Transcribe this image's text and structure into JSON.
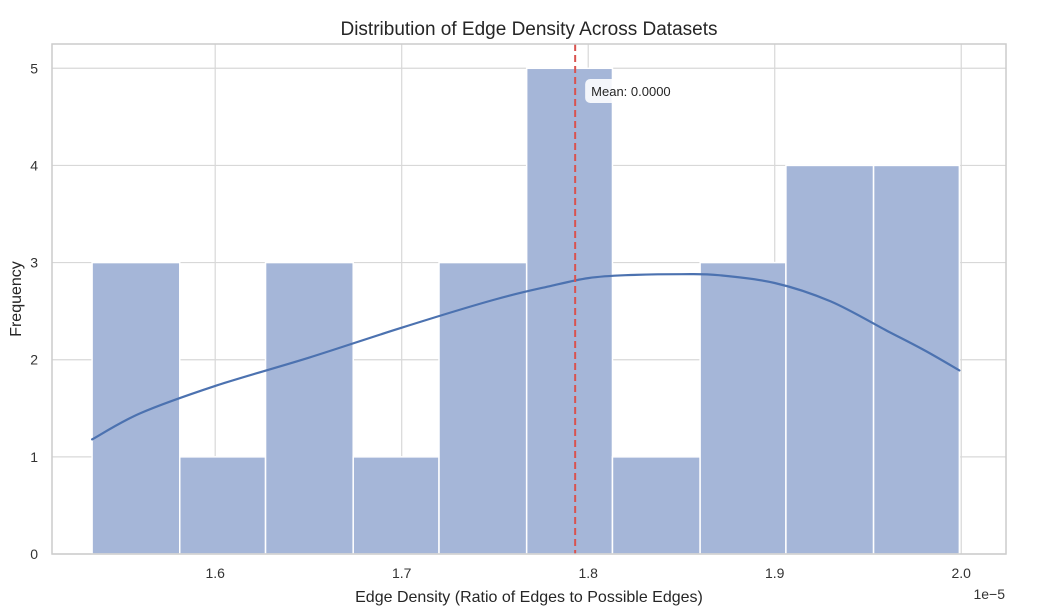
{
  "chart_data": {
    "type": "bar",
    "title": "Distribution of Edge Density Across Datasets",
    "xlabel": "Edge Density (Ratio of Edges to Possible Edges)",
    "ylabel": "Frequency",
    "x_offset_label": "1e−5",
    "xlim": [
      1.5125,
      2.024
    ],
    "ylim": [
      0,
      5.25
    ],
    "x_ticks": [
      1.6,
      1.7,
      1.8,
      1.9,
      2.0
    ],
    "x_tick_labels": [
      "1.6",
      "1.7",
      "1.8",
      "1.9",
      "2.0"
    ],
    "y_ticks": [
      0,
      1,
      2,
      3,
      4,
      5
    ],
    "y_tick_labels": [
      "0",
      "1",
      "2",
      "3",
      "4",
      "5"
    ],
    "bins": [
      {
        "x0": 1.534,
        "x1": 1.581,
        "count": 3
      },
      {
        "x0": 1.581,
        "x1": 1.627,
        "count": 1
      },
      {
        "x0": 1.627,
        "x1": 1.674,
        "count": 3
      },
      {
        "x0": 1.674,
        "x1": 1.72,
        "count": 1
      },
      {
        "x0": 1.72,
        "x1": 1.767,
        "count": 3
      },
      {
        "x0": 1.767,
        "x1": 1.813,
        "count": 5
      },
      {
        "x0": 1.813,
        "x1": 1.86,
        "count": 1
      },
      {
        "x0": 1.86,
        "x1": 1.906,
        "count": 3
      },
      {
        "x0": 1.906,
        "x1": 1.953,
        "count": 4
      },
      {
        "x0": 1.953,
        "x1": 1.999,
        "count": 4
      }
    ],
    "kde": {
      "x": [
        1.534,
        1.56,
        1.6,
        1.65,
        1.7,
        1.75,
        1.78,
        1.8,
        1.82,
        1.85,
        1.87,
        1.9,
        1.93,
        1.96,
        1.98,
        1.999
      ],
      "y": [
        1.18,
        1.45,
        1.73,
        2.02,
        2.33,
        2.62,
        2.76,
        2.84,
        2.87,
        2.88,
        2.87,
        2.79,
        2.6,
        2.3,
        2.1,
        1.89
      ]
    },
    "mean_line": {
      "x": 1.793,
      "label": "Mean: 0.0000",
      "color": "#d9534f"
    },
    "bar_color": "#a5b6d8",
    "bar_edge_color": "#ffffff",
    "kde_color": "#4c72b0",
    "grid": true,
    "grid_color": "#d8d8d8",
    "frame_color": "#cccccc"
  }
}
